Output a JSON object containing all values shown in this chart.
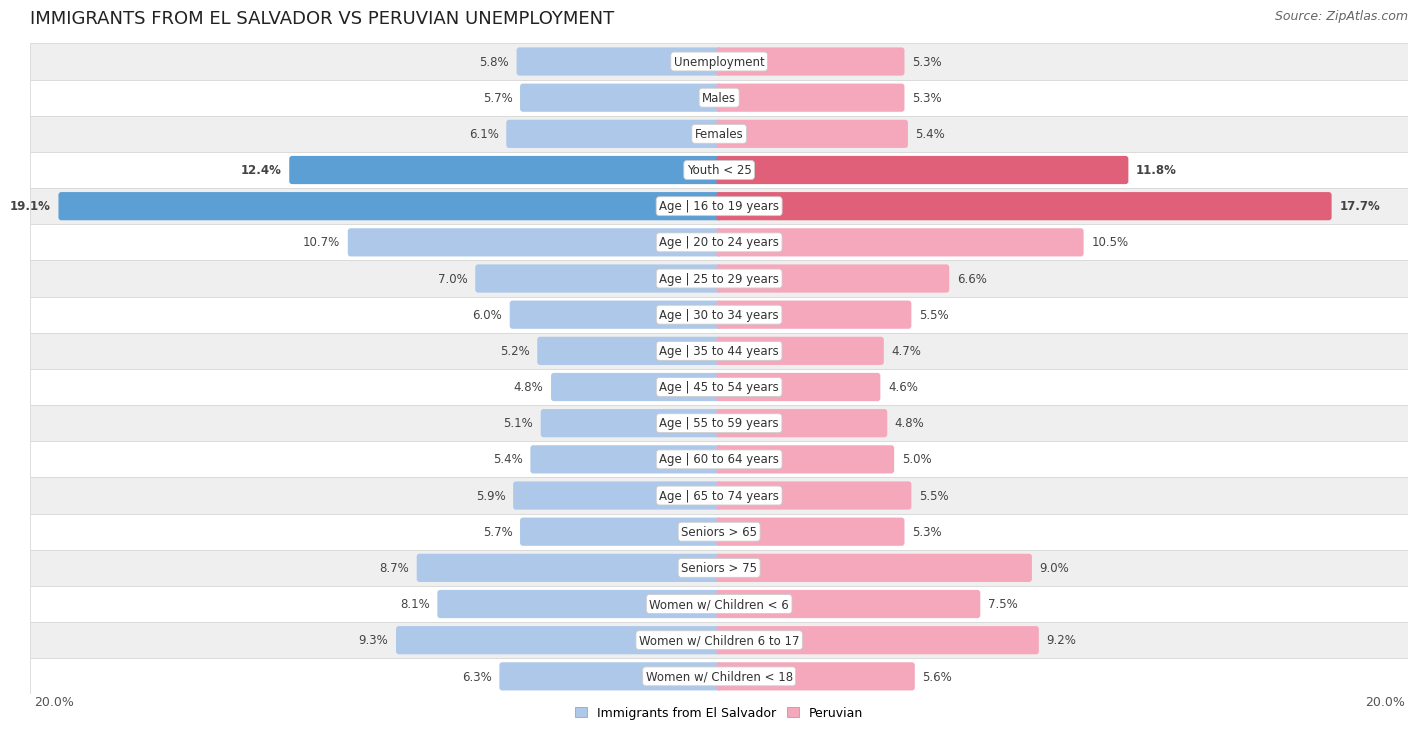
{
  "title": "IMMIGRANTS FROM EL SALVADOR VS PERUVIAN UNEMPLOYMENT",
  "source": "Source: ZipAtlas.com",
  "categories": [
    "Unemployment",
    "Males",
    "Females",
    "Youth < 25",
    "Age | 16 to 19 years",
    "Age | 20 to 24 years",
    "Age | 25 to 29 years",
    "Age | 30 to 34 years",
    "Age | 35 to 44 years",
    "Age | 45 to 54 years",
    "Age | 55 to 59 years",
    "Age | 60 to 64 years",
    "Age | 65 to 74 years",
    "Seniors > 65",
    "Seniors > 75",
    "Women w/ Children < 6",
    "Women w/ Children 6 to 17",
    "Women w/ Children < 18"
  ],
  "left_values": [
    5.8,
    5.7,
    6.1,
    12.4,
    19.1,
    10.7,
    7.0,
    6.0,
    5.2,
    4.8,
    5.1,
    5.4,
    5.9,
    5.7,
    8.7,
    8.1,
    9.3,
    6.3
  ],
  "right_values": [
    5.3,
    5.3,
    5.4,
    11.8,
    17.7,
    10.5,
    6.6,
    5.5,
    4.7,
    4.6,
    4.8,
    5.0,
    5.5,
    5.3,
    9.0,
    7.5,
    9.2,
    5.6
  ],
  "left_color": "#adc8e8",
  "right_color": "#f5a8bc",
  "highlight_left_color": "#5b9fd4",
  "highlight_right_color": "#e0607a",
  "legend_left": "Immigrants from El Salvador",
  "legend_right": "Peruvian",
  "max_value": 20.0,
  "bg_row_light": "#efefef",
  "bg_row_white": "#ffffff",
  "label_color": "#444444",
  "title_fontsize": 13,
  "source_fontsize": 9,
  "category_fontsize": 8.5,
  "value_fontsize": 8.5
}
